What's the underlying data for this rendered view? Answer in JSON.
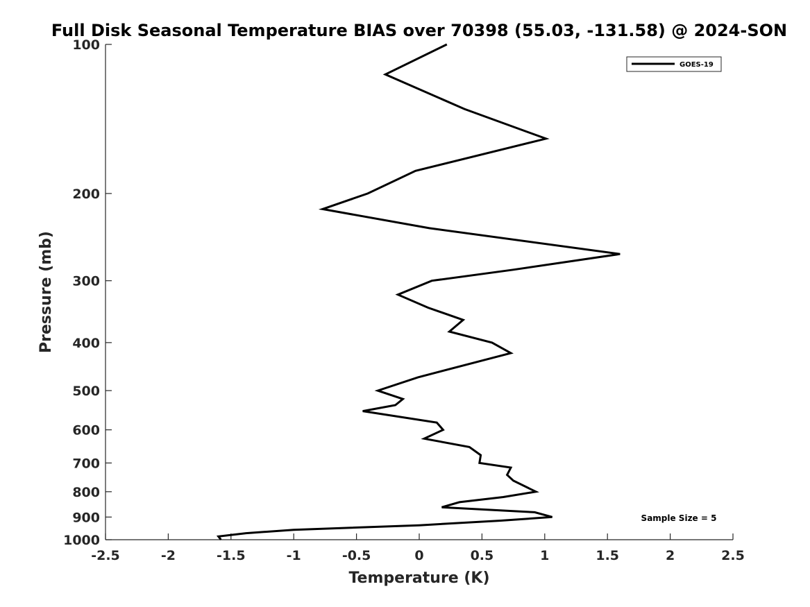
{
  "chart_data": {
    "type": "line",
    "title": "Full Disk Seasonal Temperature BIAS over 70398 (55.03, -131.58) @ 2024-SON",
    "xlabel": "Temperature (K)",
    "ylabel": "Pressure (mb)",
    "xlim": [
      -2.5,
      2.5
    ],
    "ylim": [
      1000,
      100
    ],
    "yscale": "log",
    "grid": false,
    "legend_position": "top-right",
    "x_ticks": [
      -2.5,
      -2,
      -1.5,
      -1,
      -0.5,
      0,
      0.5,
      1,
      1.5,
      2,
      2.5
    ],
    "x_tick_labels": [
      "-2.5",
      "-2",
      "-1.5",
      "-1",
      "-0.5",
      "0",
      "0.5",
      "1",
      "1.5",
      "2",
      "2.5"
    ],
    "y_ticks": [
      100,
      200,
      300,
      400,
      500,
      600,
      700,
      800,
      900,
      1000
    ],
    "y_tick_labels": [
      "100",
      "200",
      "300",
      "400",
      "500",
      "600",
      "700",
      "800",
      "900",
      "1000"
    ],
    "series": [
      {
        "name": "GOES-19",
        "color": "#000000",
        "points": [
          {
            "x": 0.22,
            "p": 100
          },
          {
            "x": -0.27,
            "p": 115
          },
          {
            "x": 0.36,
            "p": 135
          },
          {
            "x": 1.01,
            "p": 155
          },
          {
            "x": -0.03,
            "p": 180
          },
          {
            "x": -0.41,
            "p": 200
          },
          {
            "x": -0.77,
            "p": 215
          },
          {
            "x": 0.08,
            "p": 235
          },
          {
            "x": 1.6,
            "p": 265
          },
          {
            "x": 0.75,
            "p": 285
          },
          {
            "x": 0.1,
            "p": 300
          },
          {
            "x": -0.17,
            "p": 320
          },
          {
            "x": 0.07,
            "p": 340
          },
          {
            "x": 0.35,
            "p": 360
          },
          {
            "x": 0.24,
            "p": 380
          },
          {
            "x": 0.58,
            "p": 400
          },
          {
            "x": 0.73,
            "p": 420
          },
          {
            "x": -0.01,
            "p": 470
          },
          {
            "x": -0.33,
            "p": 500
          },
          {
            "x": -0.13,
            "p": 520
          },
          {
            "x": -0.19,
            "p": 535
          },
          {
            "x": -0.45,
            "p": 550
          },
          {
            "x": 0.14,
            "p": 580
          },
          {
            "x": 0.19,
            "p": 600
          },
          {
            "x": 0.04,
            "p": 625
          },
          {
            "x": 0.4,
            "p": 650
          },
          {
            "x": 0.49,
            "p": 675
          },
          {
            "x": 0.48,
            "p": 700
          },
          {
            "x": 0.73,
            "p": 715
          },
          {
            "x": 0.7,
            "p": 740
          },
          {
            "x": 0.75,
            "p": 760
          },
          {
            "x": 0.93,
            "p": 800
          },
          {
            "x": 0.67,
            "p": 820
          },
          {
            "x": 0.32,
            "p": 840
          },
          {
            "x": 0.18,
            "p": 860
          },
          {
            "x": 0.92,
            "p": 880
          },
          {
            "x": 1.06,
            "p": 900
          },
          {
            "x": 0.65,
            "p": 915
          },
          {
            "x": 0.0,
            "p": 935
          },
          {
            "x": -1.0,
            "p": 955
          },
          {
            "x": -1.38,
            "p": 970
          },
          {
            "x": -1.6,
            "p": 985
          },
          {
            "x": -1.58,
            "p": 1000
          }
        ]
      }
    ],
    "annotations": [
      "Sample Size = 5"
    ]
  }
}
